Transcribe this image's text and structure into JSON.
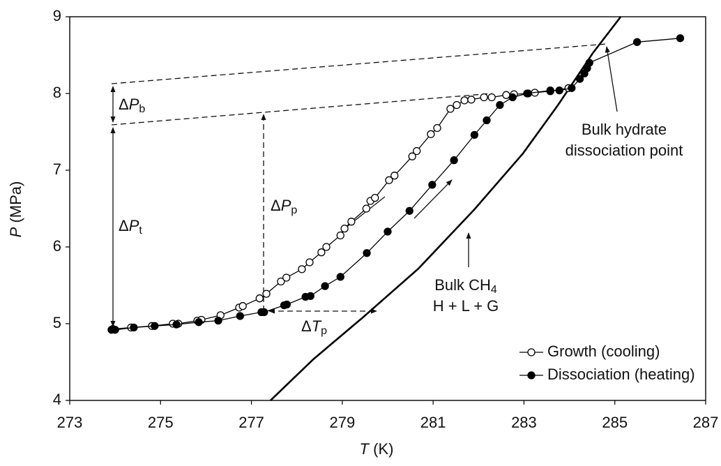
{
  "chart_data": {
    "type": "scatter",
    "xlabel": {
      "symbol": "T",
      "unit": "(K)"
    },
    "ylabel": {
      "symbol": "P",
      "unit": "(MPa)"
    },
    "xlim": [
      273,
      287
    ],
    "xticks": [
      273,
      275,
      277,
      279,
      281,
      283,
      285,
      287
    ],
    "ylim": [
      4,
      9
    ],
    "yticks": [
      4,
      5,
      6,
      7,
      8,
      9
    ],
    "legend": "lower right",
    "series": [
      {
        "name": "Growth (cooling)",
        "color": "#000000",
        "marker": "open",
        "x": [
          273.95,
          274.35,
          274.81,
          275.27,
          275.39,
          275.81,
          275.9,
          276.32,
          276.73,
          276.81,
          277.18,
          277.33,
          277.65,
          277.77,
          278.11,
          278.28,
          278.54,
          278.65,
          278.96,
          279.05,
          279.2,
          279.53,
          279.62,
          279.72,
          280.03,
          280.15,
          280.54,
          280.64,
          280.95,
          281.09,
          281.38,
          281.52,
          281.69,
          281.84,
          282.12,
          282.29,
          282.61,
          282.78,
          283.09,
          283.24,
          283.58,
          283.98
        ],
        "values": [
          4.93,
          4.95,
          4.97,
          5.0,
          5.0,
          5.04,
          5.05,
          5.11,
          5.21,
          5.23,
          5.33,
          5.39,
          5.55,
          5.6,
          5.71,
          5.8,
          5.93,
          6.0,
          6.15,
          6.24,
          6.33,
          6.5,
          6.6,
          6.64,
          6.87,
          6.93,
          7.18,
          7.25,
          7.47,
          7.55,
          7.8,
          7.85,
          7.91,
          7.92,
          7.95,
          7.95,
          7.98,
          7.99,
          8.0,
          8.01,
          8.03,
          8.07
        ]
      },
      {
        "name": "Dissociation (heating)",
        "color": "#000000",
        "marker": "filled",
        "x": [
          273.92,
          274.0,
          274.41,
          274.87,
          275.35,
          275.84,
          276.27,
          276.75,
          277.22,
          277.28,
          277.72,
          277.78,
          278.19,
          278.3,
          278.62,
          278.96,
          279.54,
          280.0,
          280.48,
          280.98,
          281.46,
          281.91,
          282.18,
          282.47,
          282.75,
          283.07,
          283.58,
          283.78,
          284.05,
          284.23,
          284.33,
          284.39,
          284.44,
          285.49,
          286.44
        ],
        "values": [
          4.92,
          4.92,
          4.95,
          4.97,
          4.99,
          5.02,
          5.04,
          5.1,
          5.15,
          5.15,
          5.24,
          5.25,
          5.35,
          5.36,
          5.49,
          5.61,
          5.92,
          6.2,
          6.47,
          6.81,
          7.13,
          7.46,
          7.65,
          7.85,
          7.95,
          8.0,
          8.04,
          8.04,
          8.07,
          8.19,
          8.26,
          8.33,
          8.4,
          8.67,
          8.72
        ]
      }
    ],
    "bulk_curve": {
      "color": "#000000",
      "x": [
        277.42,
        278.37,
        279.45,
        280.68,
        281.91,
        282.98,
        283.75,
        284.52,
        285.13
      ],
      "values": [
        4,
        4.54,
        5.08,
        5.72,
        6.49,
        7.22,
        7.85,
        8.53,
        9
      ]
    },
    "annotations": {
      "dpb": {
        "prefix": "Δ",
        "symbol": "P",
        "sub": "b"
      },
      "dpt": {
        "prefix": "Δ",
        "symbol": "P",
        "sub": "t"
      },
      "dpp": {
        "prefix": "Δ",
        "symbol": "P",
        "sub": "p"
      },
      "dtp": {
        "prefix": "Δ",
        "symbol": "T",
        "sub": "p"
      },
      "bulk_point": [
        "Bulk hydrate",
        "dissociation point"
      ],
      "bulk_ch4": {
        "text": "Bulk CH",
        "sub": "4",
        "line2": "H + L + G"
      }
    }
  }
}
